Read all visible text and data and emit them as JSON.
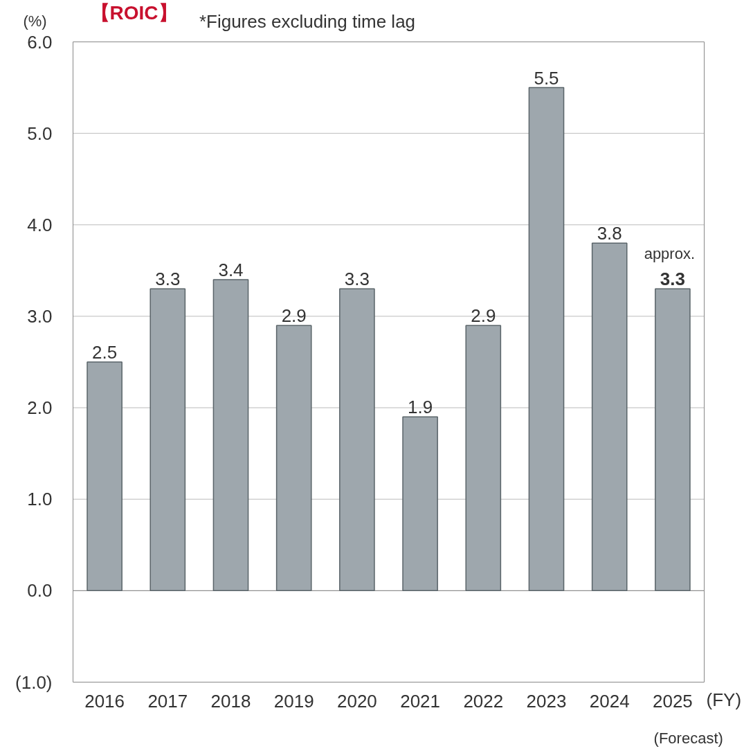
{
  "chart_data": {
    "type": "bar",
    "title": "【ROIC】",
    "subtitle": "*Figures excluding time lag",
    "ylabel": "(%)",
    "xlabel": "(FY)",
    "categories": [
      "2016",
      "2017",
      "2018",
      "2019",
      "2020",
      "2021",
      "2022",
      "2023",
      "2024",
      "2025"
    ],
    "values": [
      2.5,
      3.3,
      3.4,
      2.9,
      3.3,
      1.9,
      2.9,
      5.5,
      3.8,
      3.3
    ],
    "value_labels": [
      "2.5",
      "3.3",
      "3.4",
      "2.9",
      "3.3",
      "1.9",
      "2.9",
      "5.5",
      "3.8",
      "3.3"
    ],
    "color": "#9ea7ad",
    "ylim": [
      -1,
      6
    ],
    "yticks": [
      {
        "value": -1,
        "label": "(1.0)"
      },
      {
        "value": 0,
        "label": "0.0"
      },
      {
        "value": 1,
        "label": "1.0"
      },
      {
        "value": 2,
        "label": "2.0"
      },
      {
        "value": 3,
        "label": "3.0"
      },
      {
        "value": 4,
        "label": "4.0"
      },
      {
        "value": 5,
        "label": "5.0"
      },
      {
        "value": 6,
        "label": "6.0"
      }
    ],
    "grid": "y",
    "annotations": [
      {
        "text": "approx.",
        "x": "2025",
        "y": 3.3
      },
      "(Forecast)"
    ]
  }
}
